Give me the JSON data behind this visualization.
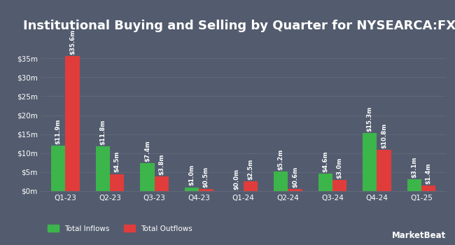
{
  "title": "Institutional Buying and Selling by Quarter for NYSEARCA:FXE",
  "categories": [
    "Q1-23",
    "Q2-23",
    "Q3-23",
    "Q4-23",
    "Q1-24",
    "Q2-24",
    "Q3-24",
    "Q4-24",
    "Q1-25"
  ],
  "inflows": [
    11.9,
    11.8,
    7.4,
    1.0,
    0.0,
    5.2,
    4.6,
    15.3,
    3.1
  ],
  "outflows": [
    35.6,
    4.5,
    3.8,
    0.5,
    2.5,
    0.6,
    3.0,
    10.8,
    1.4
  ],
  "inflow_labels": [
    "$11.9m",
    "$11.8m",
    "$7.4m",
    "$1.0m",
    "$0.0m",
    "$5.2m",
    "$4.6m",
    "$15.3m",
    "$3.1m"
  ],
  "outflow_labels": [
    "$35.6m",
    "$4.5m",
    "$3.8m",
    "$0.5m",
    "$2.5m",
    "$0.6m",
    "$3.0m",
    "$10.8m",
    "$1.4m"
  ],
  "inflow_color": "#3cb54a",
  "outflow_color": "#e03c3c",
  "background_color": "#535c6e",
  "grid_color": "#606878",
  "text_color": "#ffffff",
  "yticks": [
    0,
    5,
    10,
    15,
    20,
    25,
    30,
    35
  ],
  "ytick_labels": [
    "$0m",
    "$5m",
    "$10m",
    "$15m",
    "$20m",
    "$25m",
    "$30m",
    "$35m"
  ],
  "ylim": [
    0,
    40
  ],
  "bar_width": 0.32,
  "title_fontsize": 13,
  "label_fontsize": 6.2,
  "tick_fontsize": 7.5,
  "legend_fontsize": 7.5
}
